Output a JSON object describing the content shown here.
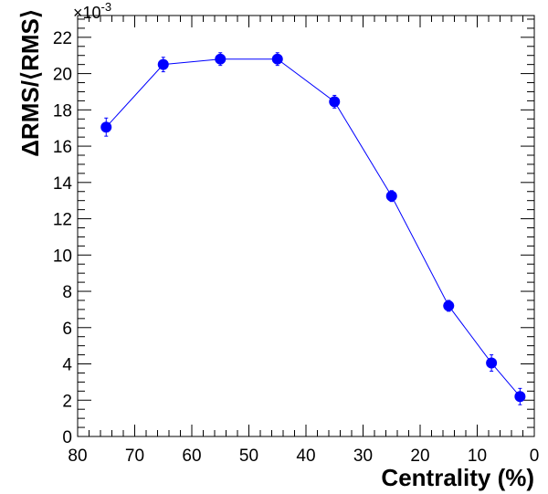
{
  "chart_data": {
    "type": "scatter",
    "title": "",
    "xlabel": "Centrality (%)",
    "ylabel": "ΔRMS/⟨RMS⟩",
    "y_multiplier_label": "×10",
    "y_multiplier_exponent": "-3",
    "xlim": [
      80,
      0
    ],
    "ylim": [
      0,
      23.2
    ],
    "x_reversed": true,
    "x_ticks": [
      80,
      70,
      60,
      50,
      40,
      30,
      20,
      10,
      0
    ],
    "y_ticks": [
      0,
      2,
      4,
      6,
      8,
      10,
      12,
      14,
      16,
      18,
      20,
      22
    ],
    "grid": false,
    "legend": "none",
    "series": [
      {
        "color": "#0000ff",
        "marker": "circle",
        "connected": true,
        "x": [
          75,
          65,
          55,
          45,
          35,
          25,
          15,
          7.5,
          2.5
        ],
        "y": [
          17.05,
          20.5,
          20.8,
          20.8,
          18.45,
          13.25,
          7.2,
          4.05,
          2.2
        ],
        "yerr": [
          0.5,
          0.4,
          0.35,
          0.35,
          0.35,
          0.3,
          0.3,
          0.45,
          0.45
        ]
      }
    ]
  }
}
